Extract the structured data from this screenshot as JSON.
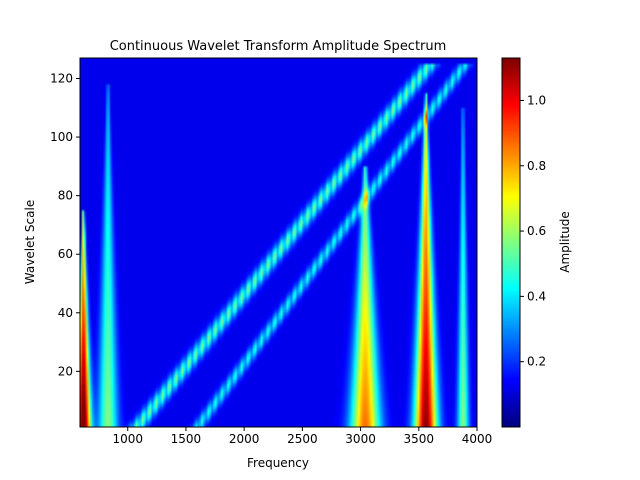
{
  "chart_data": {
    "type": "heatmap",
    "title": "Continuous Wavelet Transform Amplitude Spectrum",
    "xlabel": "Frequency",
    "ylabel": "Wavelet Scale",
    "xlim": [
      590,
      4000
    ],
    "ylim": [
      1,
      127
    ],
    "x_ticks": [
      {
        "value": 1000,
        "label": "1000"
      },
      {
        "value": 1500,
        "label": "1500"
      },
      {
        "value": 2000,
        "label": "2000"
      },
      {
        "value": 2500,
        "label": "2500"
      },
      {
        "value": 3000,
        "label": "3000"
      },
      {
        "value": 3500,
        "label": "3500"
      },
      {
        "value": 4000,
        "label": "4000"
      }
    ],
    "y_ticks": [
      {
        "value": 20,
        "label": "20"
      },
      {
        "value": 40,
        "label": "40"
      },
      {
        "value": 60,
        "label": "60"
      },
      {
        "value": 80,
        "label": "80"
      },
      {
        "value": 100,
        "label": "100"
      },
      {
        "value": 120,
        "label": "120"
      }
    ],
    "colormap": "jet",
    "colorbar": {
      "label": "Amplitude",
      "range": [
        0.0,
        1.13
      ],
      "ticks": [
        {
          "value": 0.2,
          "label": "0.2"
        },
        {
          "value": 0.4,
          "label": "0.4"
        },
        {
          "value": 0.6,
          "label": "0.6"
        },
        {
          "value": 0.8,
          "label": "0.8"
        },
        {
          "value": 1.0,
          "label": "1.0"
        }
      ]
    },
    "grid": false,
    "features": [
      {
        "kind": "ridge",
        "x": 620,
        "peak_amplitude": 1.1,
        "half_width": 55,
        "max_scale": 75,
        "tip_width": 8
      },
      {
        "kind": "ridge",
        "x": 830,
        "peak_amplitude": 0.45,
        "half_width": 75,
        "max_scale": 118,
        "tip_width": 10
      },
      {
        "kind": "ridge",
        "x": 3040,
        "peak_amplitude": 0.75,
        "half_width": 110,
        "max_scale": 90,
        "tip_width": 15
      },
      {
        "kind": "ridge",
        "x": 3560,
        "peak_amplitude": 1.0,
        "half_width": 90,
        "max_scale": 115,
        "tip_width": 8
      },
      {
        "kind": "ridge",
        "x": 3880,
        "peak_amplitude": 0.45,
        "half_width": 40,
        "max_scale": 110,
        "tip_width": 10
      },
      {
        "kind": "chirp",
        "x_start": 1080,
        "x_end": 3600,
        "y_start": 1,
        "y_end": 125,
        "peak_amplitude": 0.45,
        "width": 70
      },
      {
        "kind": "chirp",
        "x_start": 1600,
        "x_end": 3900,
        "y_start": 1,
        "y_end": 125,
        "peak_amplitude": 0.35,
        "width": 55
      }
    ]
  }
}
